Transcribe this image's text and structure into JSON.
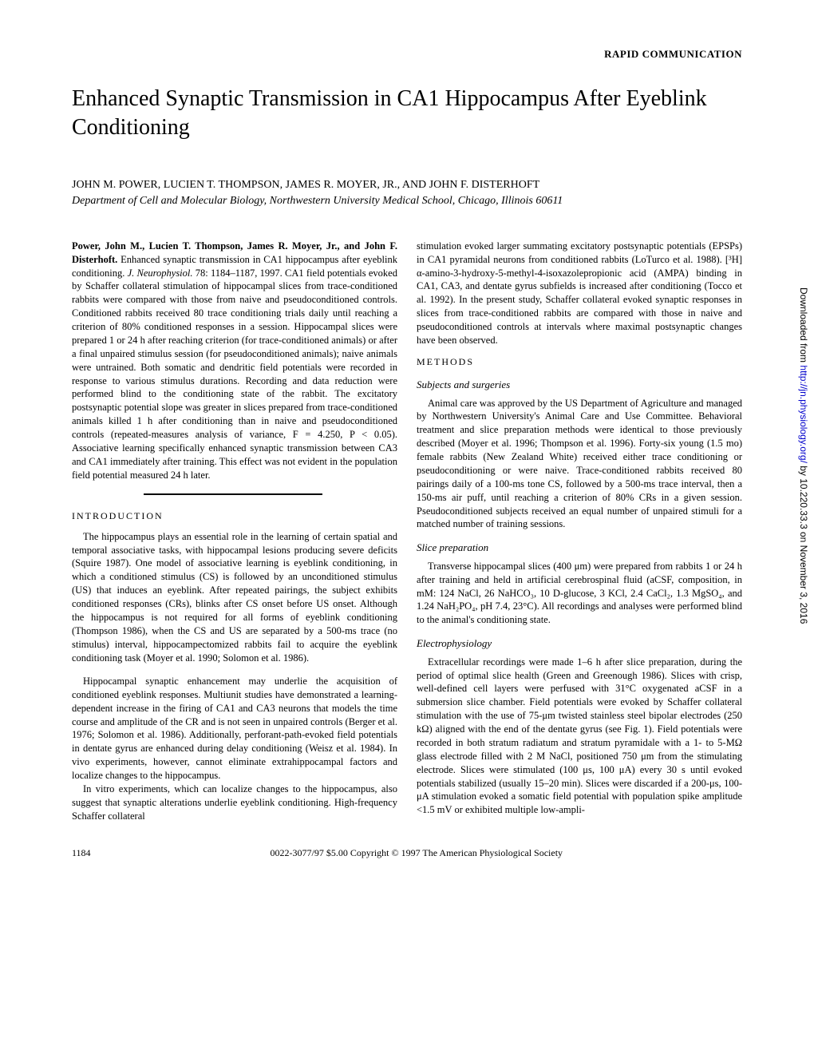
{
  "header": {
    "rapid": "RAPID COMMUNICATION"
  },
  "title": "Enhanced Synaptic Transmission in CA1 Hippocampus After Eyeblink Conditioning",
  "authors": "JOHN M. POWER, LUCIEN T. THOMPSON, JAMES R. MOYER, JR., AND JOHN F. DISTERHOFT",
  "affiliation": "Department of Cell and Molecular Biology, Northwestern University Medical School, Chicago, Illinois 60611",
  "abstract": {
    "lead": "Power, John M., Lucien T. Thompson, James R. Moyer, Jr., and John F. Disterhoft.",
    "title_inline": " Enhanced synaptic transmission in CA1 hippocampus after eyeblink conditioning. ",
    "journal": "J. Neurophysiol.",
    "citation": " 78: 1184–1187, 1997. ",
    "body": "CA1 field potentials evoked by Schaffer collateral stimulation of hippocampal slices from trace-conditioned rabbits were compared with those from naive and pseudoconditioned controls. Conditioned rabbits received 80 trace conditioning trials daily until reaching a criterion of 80% conditioned responses in a session. Hippocampal slices were prepared 1 or 24 h after reaching criterion (for trace-conditioned animals) or after a final unpaired stimulus session (for pseudoconditioned animals); naive animals were untrained. Both somatic and dendritic field potentials were recorded in response to various stimulus durations. Recording and data reduction were performed blind to the conditioning state of the rabbit. The excitatory postsynaptic potential slope was greater in slices prepared from trace-conditioned animals killed 1 h after conditioning than in naive and pseudoconditioned controls (repeated-measures analysis of variance, F = 4.250, P < 0.05). Associative learning specifically enhanced synaptic transmission between CA3 and CA1 immediately after training. This effect was not evident in the population field potential measured 24 h later."
  },
  "intro": {
    "head": "INTRODUCTION",
    "p1": "The hippocampus plays an essential role in the learning of certain spatial and temporal associative tasks, with hippocampal lesions producing severe deficits (Squire 1987). One model of associative learning is eyeblink conditioning, in which a conditioned stimulus (CS) is followed by an unconditioned stimulus (US) that induces an eyeblink. After repeated pairings, the subject exhibits conditioned responses (CRs), blinks after CS onset before US onset. Although the hippocampus is not required for all forms of eyeblink conditioning (Thompson 1986), when the CS and US are separated by a 500-ms trace (no stimulus) interval, hippocampectomized rabbits fail to acquire the eyeblink conditioning task (Moyer et al. 1990; Solomon et al. 1986).",
    "p2": "Hippocampal synaptic enhancement may underlie the acquisition of conditioned eyeblink responses. Multiunit studies have demonstrated a learning-dependent increase in the firing of CA1 and CA3 neurons that models the time course and amplitude of the CR and is not seen in unpaired controls (Berger et al. 1976; Solomon et al. 1986). Additionally, perforant-path-evoked field potentials in dentate gyrus are enhanced during delay conditioning (Weisz et al. 1984). In vivo experiments, however, cannot eliminate extrahippocampal factors and localize changes to the hippocampus.",
    "p3": "In vitro experiments, which can localize changes to the hippocampus, also suggest that synaptic alterations underlie eyeblink conditioning. High-frequency Schaffer collateral"
  },
  "col2": {
    "continuation": "stimulation evoked larger summating excitatory postsynaptic potentials (EPSPs) in CA1 pyramidal neurons from conditioned rabbits (LoTurco et al. 1988). [³H] α-amino-3-hydroxy-5-methyl-4-isoxazolepropionic acid (AMPA) binding in CA1, CA3, and dentate gyrus subfields is increased after conditioning (Tocco et al. 1992). In the present study, Schaffer collateral evoked synaptic responses in slices from trace-conditioned rabbits are compared with those in naive and pseudoconditioned controls at intervals where maximal postsynaptic changes have been observed.",
    "methods_head": "METHODS",
    "sub1": "Subjects and surgeries",
    "sub1_body": "Animal care was approved by the US Department of Agriculture and managed by Northwestern University's Animal Care and Use Committee. Behavioral treatment and slice preparation methods were identical to those previously described (Moyer et al. 1996; Thompson et al. 1996). Forty-six young (1.5 mo) female rabbits (New Zealand White) received either trace conditioning or pseudoconditioning or were naive. Trace-conditioned rabbits received 80 pairings daily of a 100-ms tone CS, followed by a 500-ms trace interval, then a 150-ms air puff, until reaching a criterion of 80% CRs in a given session. Pseudoconditioned subjects received an equal number of unpaired stimuli for a matched number of training sessions.",
    "sub2": "Slice preparation",
    "sub2_body": "Transverse hippocampal slices (400 μm) were prepared from rabbits 1 or 24 h after training and held in artificial cerebrospinal fluid (aCSF, composition, in mM: 124 NaCl, 26 NaHCO₃, 10 D-glucose, 3 KCl, 2.4 CaCl₂, 1.3 MgSO₄, and 1.24 NaH₂PO₄, pH 7.4, 23°C). All recordings and analyses were performed blind to the animal's conditioning state.",
    "sub3": "Electrophysiology",
    "sub3_body": "Extracellular recordings were made 1–6 h after slice preparation, during the period of optimal slice health (Green and Greenough 1986). Slices with crisp, well-defined cell layers were perfused with 31°C oxygenated aCSF in a submersion slice chamber. Field potentials were evoked by Schaffer collateral stimulation with the use of 75-μm twisted stainless steel bipolar electrodes (250 kΩ) aligned with the end of the dentate gyrus (see Fig. 1). Field potentials were recorded in both stratum radiatum and stratum pyramidale with a 1- to 5-MΩ glass electrode filled with 2 M NaCl, positioned 750 μm from the stimulating electrode. Slices were stimulated (100 μs, 100 μA) every 30 s until evoked potentials stabilized (usually 15–20 min). Slices were discarded if a 200-μs, 100-μA stimulation evoked a somatic field potential with population spike amplitude <1.5 mV or exhibited multiple low-ampli-"
  },
  "footer": {
    "page": "1184",
    "copyright": "0022-3077/97 $5.00 Copyright © 1997 The American Physiological Society"
  },
  "sidebar": {
    "pre": "Downloaded from ",
    "url": "http://jn.physiology.org/",
    "post": " by 10.220.33.3 on November 3, 2016"
  }
}
